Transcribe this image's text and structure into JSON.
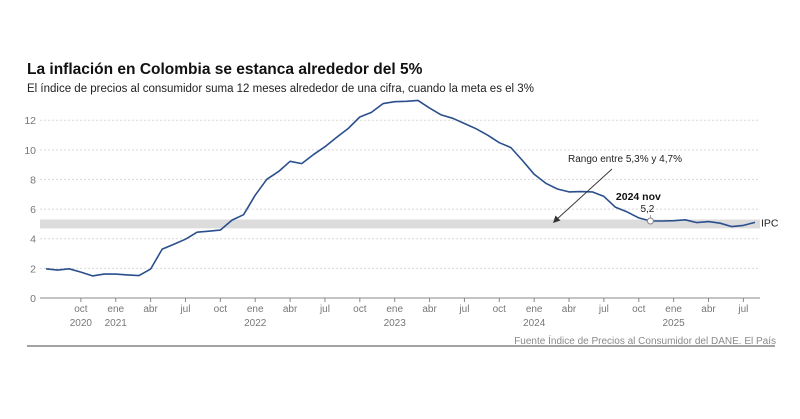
{
  "header": {
    "title": "La inflación en Colombia se estanca alrededor del 5%",
    "subtitle": "El índice de precios al consumidor suma 12 meses alrededor de una cifra, cuando la meta es el 3%"
  },
  "footer": {
    "source": "Fuente Índice de Precios al Consumidor del DANE. El País"
  },
  "colors": {
    "line": "#2a4f8c",
    "band": "#dcdcdc",
    "grid": "#d9d9d9",
    "axis_text": "#777777"
  },
  "chart_data": {
    "type": "line",
    "title": "La inflación en Colombia se estanca alrededor del 5%",
    "ylim": [
      0,
      13.5
    ],
    "yticks": [
      0,
      2,
      4,
      6,
      8,
      10,
      12
    ],
    "x_start": "2020-07",
    "x_end": "2025-08",
    "xticks": [
      {
        "month": "oct",
        "year": "2020",
        "idx": 3
      },
      {
        "month": "ene",
        "year": "2021",
        "idx": 6
      },
      {
        "month": "abr",
        "year": "",
        "idx": 9
      },
      {
        "month": "jul",
        "year": "",
        "idx": 12
      },
      {
        "month": "oct",
        "year": "",
        "idx": 15
      },
      {
        "month": "ene",
        "year": "2022",
        "idx": 18
      },
      {
        "month": "abr",
        "year": "",
        "idx": 21
      },
      {
        "month": "jul",
        "year": "",
        "idx": 24
      },
      {
        "month": "oct",
        "year": "",
        "idx": 27
      },
      {
        "month": "ene",
        "year": "2023",
        "idx": 30
      },
      {
        "month": "abr",
        "year": "",
        "idx": 33
      },
      {
        "month": "jul",
        "year": "",
        "idx": 36
      },
      {
        "month": "oct",
        "year": "",
        "idx": 39
      },
      {
        "month": "ene",
        "year": "2024",
        "idx": 42
      },
      {
        "month": "abr",
        "year": "",
        "idx": 45
      },
      {
        "month": "jul",
        "year": "",
        "idx": 48
      },
      {
        "month": "oct",
        "year": "",
        "idx": 51
      },
      {
        "month": "ene",
        "year": "2025",
        "idx": 54
      },
      {
        "month": "abr",
        "year": "",
        "idx": 57
      },
      {
        "month": "jul",
        "year": "",
        "idx": 60
      }
    ],
    "band": {
      "low": 4.7,
      "high": 5.3,
      "label": "Rango entre 5,3% y 4,7%"
    },
    "series": [
      {
        "name": "IPC",
        "values": [
          1.97,
          1.88,
          1.97,
          1.75,
          1.49,
          1.61,
          1.61,
          1.56,
          1.51,
          1.95,
          3.3,
          3.63,
          3.97,
          4.44,
          4.51,
          4.58,
          5.26,
          5.62,
          6.94,
          8.01,
          8.53,
          9.23,
          9.07,
          9.67,
          10.21,
          10.84,
          11.44,
          12.22,
          12.53,
          13.12,
          13.25,
          13.28,
          13.34,
          12.82,
          12.36,
          12.13,
          11.78,
          11.43,
          10.99,
          10.48,
          10.15,
          9.28,
          8.35,
          7.74,
          7.36,
          7.16,
          7.18,
          7.16,
          6.86,
          6.12,
          5.81,
          5.41,
          5.2,
          5.2,
          5.22,
          5.28,
          5.09,
          5.16,
          5.05,
          4.82,
          4.9,
          5.1
        ]
      }
    ],
    "annotation": {
      "label": "2024 nov",
      "value": "5,2",
      "idx": 52
    },
    "series_label": "IPC"
  }
}
